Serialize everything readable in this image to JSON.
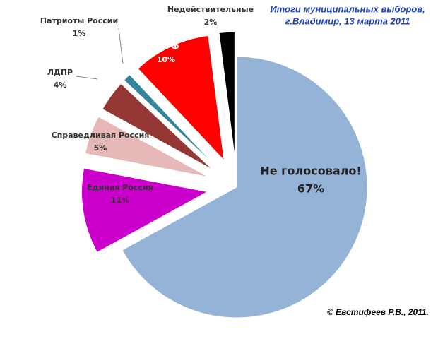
{
  "chart_data": {
    "type": "pie",
    "title_lines": [
      "Итоги муниципальных выборов,",
      "г.Владимир, 13 марта 2011"
    ],
    "categories": [
      "Не голосовало!",
      "Единая Россия",
      "Справедливая  Россия",
      "ЛДПР",
      "Патриоты России",
      "КПРФ",
      "Недействительные"
    ],
    "values": [
      67,
      11,
      5,
      4,
      1,
      10,
      2
    ],
    "value_labels": [
      "67%",
      "11%",
      "5%",
      "4%",
      "1%",
      "10%",
      "2%"
    ],
    "colors": [
      "#95b3d7",
      "#cc00cc",
      "#e6b9b8",
      "#953735",
      "#31859c",
      "#ff0000",
      "#000000"
    ],
    "annotation": "© Евстифеев Р.В., 2011."
  }
}
